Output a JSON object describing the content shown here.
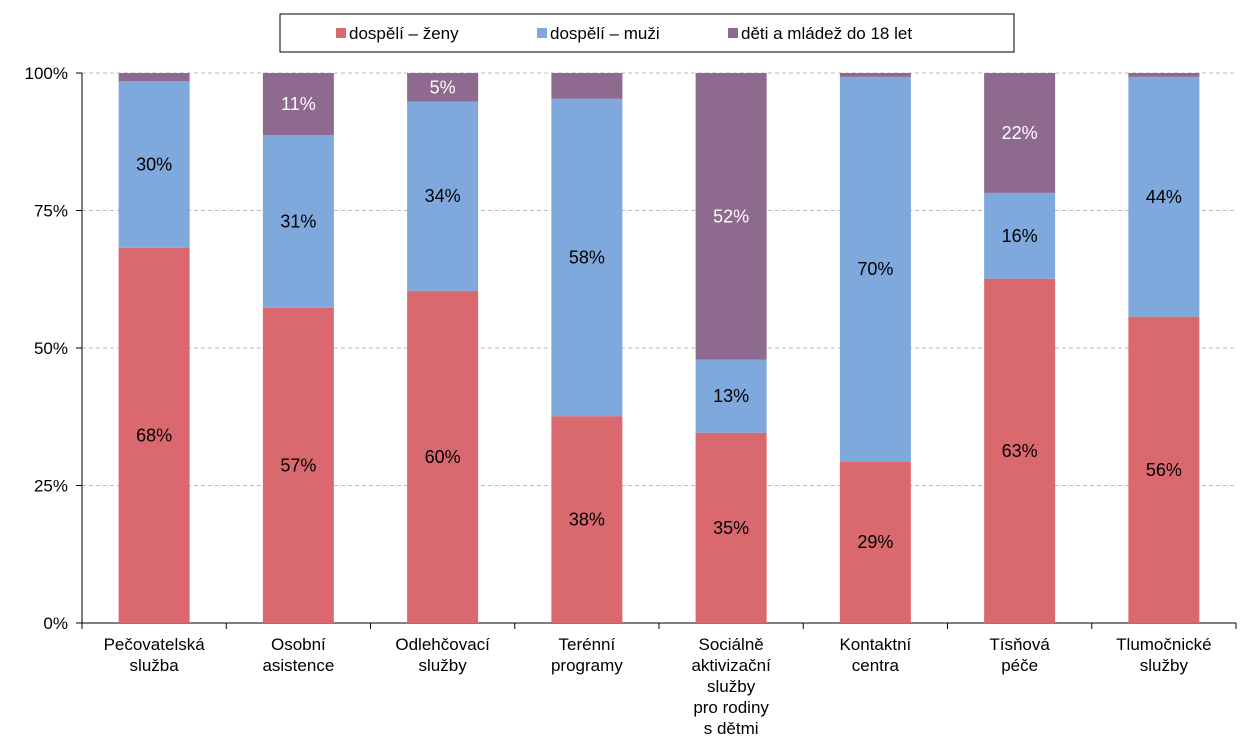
{
  "chart_data": {
    "type": "bar",
    "stacked": true,
    "percent_stacked": true,
    "title": "",
    "xlabel": "",
    "ylabel": "",
    "ylim": [
      0,
      100
    ],
    "y_ticks": [
      0,
      25,
      50,
      75,
      100
    ],
    "y_tick_labels": [
      "0%",
      "25%",
      "50%",
      "75%",
      "100%"
    ],
    "grid": true,
    "legend_position": "top-center",
    "categories": [
      [
        "Pečovatelská",
        "služba"
      ],
      [
        "Osobní",
        "asistence"
      ],
      [
        "Odlehčovací",
        "služby"
      ],
      [
        "Terénní",
        "programy"
      ],
      [
        "Sociálně",
        "aktivizační",
        "služby",
        "pro rodiny",
        "s dětmi"
      ],
      [
        "Kontaktní",
        "centra"
      ],
      [
        "Tísňová",
        "péče"
      ],
      [
        "Tlumočnické",
        "služby"
      ]
    ],
    "series": [
      {
        "name": "dospělí – ženy",
        "color": "#d9696f",
        "values": [
          68.2,
          57.3,
          60.4,
          37.6,
          34.6,
          29.4,
          62.6,
          55.7
        ],
        "labels": [
          "68%",
          "57%",
          "60%",
          "38%",
          "35%",
          "29%",
          "63%",
          "56%"
        ]
      },
      {
        "name": "dospělí – muži",
        "color": "#7fa8dc",
        "values": [
          30.3,
          31.4,
          34.4,
          57.7,
          13.3,
          69.9,
          15.6,
          43.6
        ],
        "labels": [
          "30%",
          "31%",
          "34%",
          "58%",
          "13%",
          "70%",
          "16%",
          "44%"
        ]
      },
      {
        "name": "děti a mládež do 18 let",
        "color": "#8e6a8e",
        "values": [
          1.5,
          11.3,
          5.2,
          4.7,
          52.1,
          0.7,
          21.8,
          0.7
        ],
        "labels": [
          "",
          "11%",
          "5%",
          "",
          "52%",
          "",
          "22%",
          ""
        ]
      }
    ]
  }
}
